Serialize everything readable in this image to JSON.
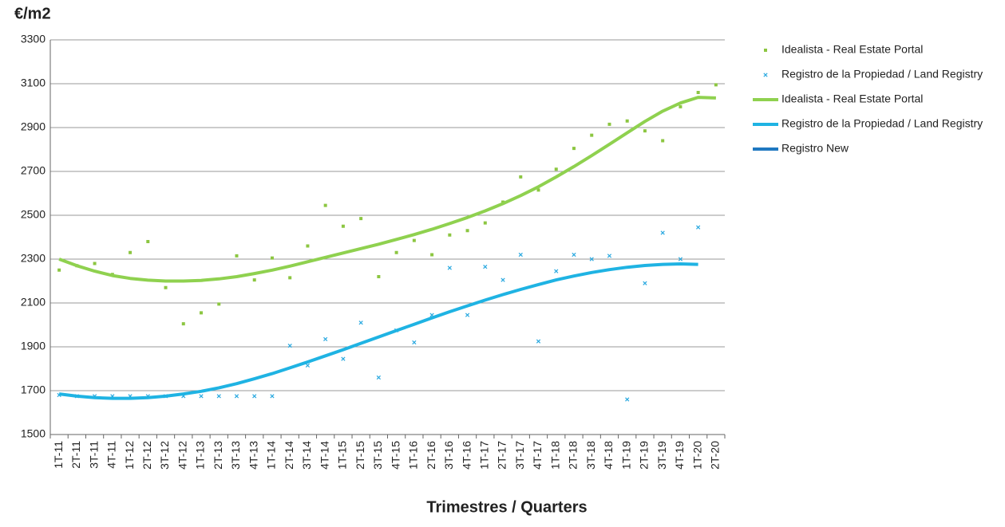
{
  "chart_data": {
    "type": "line",
    "title": "€/m2",
    "x_label": "Trimestres / Quarters",
    "categories": [
      "1T-11",
      "2T-11",
      "3T-11",
      "4T-11",
      "1T-12",
      "2T-12",
      "3T-12",
      "4T-12",
      "1T-13",
      "2T-13",
      "3T-13",
      "4T-13",
      "1T-14",
      "2T-14",
      "3T-14",
      "4T-14",
      "1T-15",
      "2T-15",
      "3T-15",
      "4T-15",
      "1T-16",
      "2T-16",
      "3T-16",
      "4T-16",
      "1T-17",
      "2T-17",
      "3T-17",
      "4T-17",
      "1T-18",
      "2T-18",
      "3T-18",
      "4T-18",
      "1T-19",
      "2T-19",
      "3T-19",
      "4T-19",
      "1T-20",
      "2T-20"
    ],
    "ylim": [
      1500,
      3300
    ],
    "yticks": [
      1500,
      1700,
      1900,
      2100,
      2300,
      2500,
      2700,
      2900,
      3100,
      3300
    ],
    "grid": true,
    "legend": "right",
    "series": [
      {
        "name": "Idealista - Real Estate Portal",
        "color": "#8cc641",
        "style": "points",
        "marker": "square",
        "values": [
          2250,
          2270,
          2280,
          2230,
          2330,
          2380,
          2170,
          2005,
          2055,
          2095,
          2315,
          2205,
          2305,
          2215,
          2360,
          2545,
          2450,
          2485,
          2220,
          2330,
          2385,
          2320,
          2410,
          2430,
          2465,
          2560,
          2675,
          2615,
          2710,
          2805,
          2865,
          2915,
          2930,
          2885,
          2840,
          2995,
          3060,
          3095
        ]
      },
      {
        "name": "Registro de la Propiedad / Land Registry",
        "color": "#2aa9e0",
        "style": "points",
        "marker": "x",
        "values": [
          1680,
          1675,
          1675,
          1675,
          1675,
          1675,
          1675,
          1675,
          1675,
          1675,
          1675,
          1675,
          1675,
          1905,
          1815,
          1935,
          1845,
          2010,
          1760,
          1975,
          1920,
          2045,
          2260,
          2045,
          2265,
          2205,
          2320,
          1925,
          2245,
          2320,
          2300,
          2315,
          1660,
          2190,
          2420,
          2300,
          2445,
          null
        ]
      },
      {
        "name": "Idealista - Real Estate Portal",
        "color": "#8fd14f",
        "style": "line",
        "values": [
          2300,
          2270,
          2245,
          2225,
          2212,
          2204,
          2200,
          2200,
          2203,
          2210,
          2220,
          2234,
          2250,
          2268,
          2288,
          2308,
          2328,
          2348,
          2368,
          2390,
          2412,
          2436,
          2462,
          2490,
          2520,
          2553,
          2590,
          2630,
          2675,
          2722,
          2772,
          2824,
          2876,
          2928,
          2975,
          3012,
          3038,
          3035
        ]
      },
      {
        "name": "Registro de la Propiedad / Land Registry",
        "color": "#1fb3e3",
        "style": "line",
        "values": [
          1685,
          1675,
          1668,
          1665,
          1665,
          1668,
          1675,
          1685,
          1697,
          1713,
          1732,
          1754,
          1778,
          1804,
          1831,
          1859,
          1887,
          1916,
          1945,
          1974,
          2003,
          2032,
          2060,
          2087,
          2113,
          2138,
          2162,
          2184,
          2205,
          2223,
          2239,
          2252,
          2263,
          2271,
          2276,
          2278,
          2276,
          null
        ]
      },
      {
        "name": "Registro New",
        "color": "#1f78c1",
        "style": "line",
        "values": [
          null,
          null,
          null,
          null,
          null,
          null,
          null,
          null,
          null,
          null,
          null,
          null,
          null,
          null,
          null,
          null,
          null,
          null,
          null,
          null,
          null,
          null,
          null,
          null,
          null,
          null,
          null,
          null,
          null,
          null,
          null,
          null,
          null,
          null,
          null,
          null,
          null,
          null
        ]
      }
    ]
  }
}
